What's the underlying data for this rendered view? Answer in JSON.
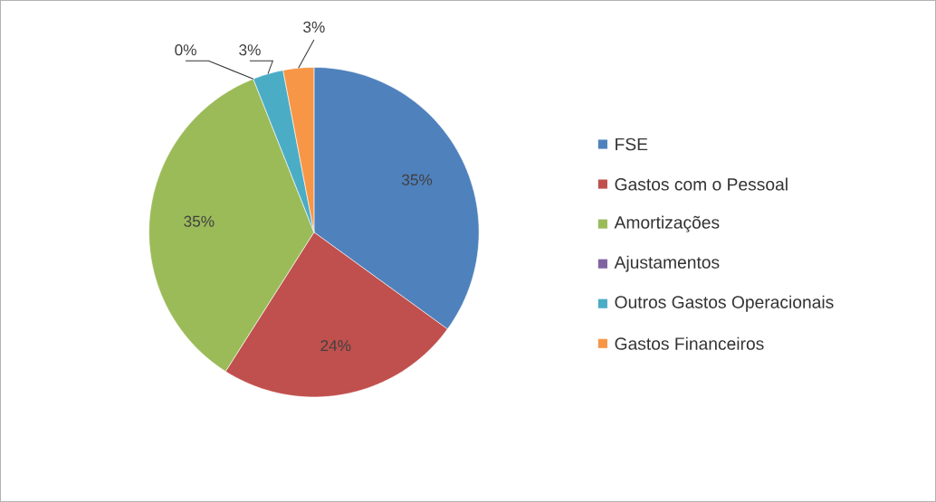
{
  "chart_data": {
    "type": "pie",
    "categories": [
      "FSE",
      "Gastos com o Pessoal",
      "Amortizações",
      "Ajustamentos",
      "Outros Gastos Operacionais",
      "Gastos Financeiros"
    ],
    "values": [
      35,
      24,
      35,
      0,
      3,
      3
    ],
    "value_labels": [
      "35%",
      "24%",
      "35%",
      "0%",
      "3%",
      "3%"
    ],
    "colors": [
      "#4f81bd",
      "#c0504d",
      "#9bbb59",
      "#8064a2",
      "#4bacc6",
      "#f79646"
    ],
    "legend": "right"
  }
}
